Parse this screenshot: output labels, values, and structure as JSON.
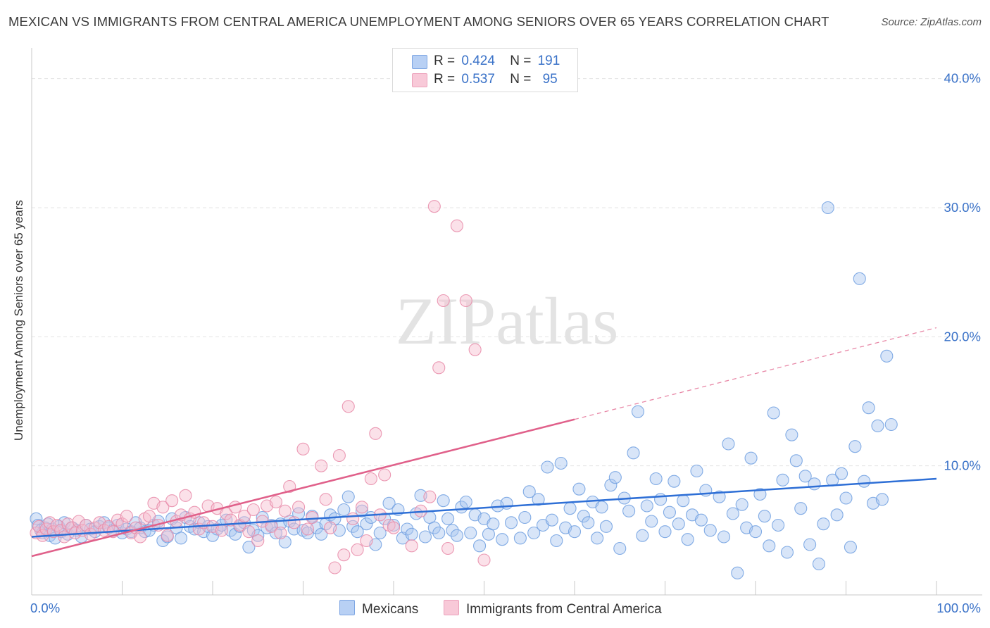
{
  "header": {
    "title": "MEXICAN VS IMMIGRANTS FROM CENTRAL AMERICA UNEMPLOYMENT AMONG SENIORS OVER 65 YEARS CORRELATION CHART",
    "source": "Source: ZipAtlas.com"
  },
  "watermark": "ZIPatlas",
  "stats_legend": {
    "r_label": "R =",
    "n_label": "N =",
    "rows": [
      {
        "r": "0.424",
        "n": "191"
      },
      {
        "r": "0.537",
        "n": "95"
      }
    ]
  },
  "chart_data": {
    "type": "scatter",
    "title": "MEXICAN VS IMMIGRANTS FROM CENTRAL AMERICA UNEMPLOYMENT AMONG SENIORS OVER 65 YEARS CORRELATION CHART",
    "ylabel": "Unemployment Among Seniors over 65 years",
    "xlim": [
      0,
      100
    ],
    "ylim": [
      0,
      42
    ],
    "x_tick_labels": [
      "0.0%",
      "100.0%"
    ],
    "y_ticks": [
      10,
      20,
      30,
      40
    ],
    "y_tick_labels": [
      "10.0%",
      "20.0%",
      "30.0%",
      "40.0%"
    ],
    "grid": true,
    "legend_position": "bottom",
    "series": [
      {
        "name": "Mexicans",
        "color": "#6f9fe0",
        "fill": "#a9c6f0",
        "trend": {
          "x0": 0,
          "y0": 4.5,
          "x1": 100,
          "y1": 9.0,
          "dashed_from": null
        },
        "points": [
          [
            0.5,
            5.9
          ],
          [
            0.7,
            5.4
          ],
          [
            1,
            5.0
          ],
          [
            1.2,
            4.8
          ],
          [
            1.5,
            5.2
          ],
          [
            1.8,
            5.5
          ],
          [
            2,
            4.6
          ],
          [
            2.3,
            5.1
          ],
          [
            2.6,
            4.4
          ],
          [
            3,
            5.3
          ],
          [
            3.3,
            4.9
          ],
          [
            3.6,
            5.6
          ],
          [
            4,
            4.7
          ],
          [
            4.5,
            5.2
          ],
          [
            5,
            5.0
          ],
          [
            5.5,
            4.5
          ],
          [
            6,
            5.4
          ],
          [
            6.5,
            5.1
          ],
          [
            7,
            4.9
          ],
          [
            7.5,
            5.3
          ],
          [
            8,
            5.6
          ],
          [
            8.5,
            5.2
          ],
          [
            9,
            5.0
          ],
          [
            9.5,
            5.4
          ],
          [
            10,
            4.8
          ],
          [
            10.5,
            5.1
          ],
          [
            11,
            4.9
          ],
          [
            11.5,
            5.6
          ],
          [
            12,
            5.2
          ],
          [
            12.5,
            4.9
          ],
          [
            13,
            5.0
          ],
          [
            13.5,
            5.4
          ],
          [
            14,
            5.7
          ],
          [
            14.5,
            4.2
          ],
          [
            15,
            4.5
          ],
          [
            15.5,
            5.9
          ],
          [
            16,
            5.2
          ],
          [
            16.5,
            4.4
          ],
          [
            17,
            6.0
          ],
          [
            17.5,
            5.3
          ],
          [
            18,
            5.1
          ],
          [
            18.5,
            5.6
          ],
          [
            19,
            4.9
          ],
          [
            19.5,
            5.3
          ],
          [
            20,
            4.6
          ],
          [
            20.5,
            5.1
          ],
          [
            21,
            5.4
          ],
          [
            21.5,
            5.8
          ],
          [
            22,
            5.0
          ],
          [
            22.5,
            4.7
          ],
          [
            23,
            5.3
          ],
          [
            23.5,
            5.6
          ],
          [
            24,
            3.7
          ],
          [
            24.5,
            5.0
          ],
          [
            25,
            4.6
          ],
          [
            25.5,
            6.0
          ],
          [
            26,
            5.2
          ],
          [
            26.5,
            5.4
          ],
          [
            27,
            4.8
          ],
          [
            27.5,
            5.5
          ],
          [
            28,
            4.1
          ],
          [
            28.5,
            5.7
          ],
          [
            29,
            5.1
          ],
          [
            29.5,
            6.3
          ],
          [
            30,
            5.0
          ],
          [
            30.5,
            4.8
          ],
          [
            31,
            6.1
          ],
          [
            31.5,
            5.2
          ],
          [
            32,
            4.7
          ],
          [
            32.5,
            5.5
          ],
          [
            33,
            6.2
          ],
          [
            33.5,
            5.9
          ],
          [
            34,
            5.0
          ],
          [
            34.5,
            6.6
          ],
          [
            35,
            7.6
          ],
          [
            35.5,
            5.3
          ],
          [
            36,
            4.9
          ],
          [
            36.5,
            6.5
          ],
          [
            37,
            5.5
          ],
          [
            37.5,
            6.0
          ],
          [
            38,
            3.9
          ],
          [
            38.5,
            4.8
          ],
          [
            39,
            5.9
          ],
          [
            39.5,
            7.1
          ],
          [
            40,
            5.4
          ],
          [
            40.5,
            6.6
          ],
          [
            41,
            4.4
          ],
          [
            41.5,
            5.1
          ],
          [
            42,
            4.7
          ],
          [
            42.5,
            6.3
          ],
          [
            43,
            7.7
          ],
          [
            43.5,
            4.5
          ],
          [
            44,
            6.0
          ],
          [
            44.5,
            5.2
          ],
          [
            45,
            4.8
          ],
          [
            45.5,
            7.3
          ],
          [
            46,
            5.9
          ],
          [
            46.5,
            5.0
          ],
          [
            47,
            4.6
          ],
          [
            47.5,
            6.8
          ],
          [
            48,
            7.2
          ],
          [
            48.5,
            4.8
          ],
          [
            49,
            6.2
          ],
          [
            49.5,
            3.8
          ],
          [
            50,
            5.9
          ],
          [
            50.5,
            4.7
          ],
          [
            51,
            5.5
          ],
          [
            51.5,
            6.9
          ],
          [
            52,
            4.3
          ],
          [
            52.5,
            7.1
          ],
          [
            53,
            5.6
          ],
          [
            54,
            4.4
          ],
          [
            54.5,
            6.0
          ],
          [
            55,
            8.0
          ],
          [
            55.5,
            4.8
          ],
          [
            56,
            7.4
          ],
          [
            56.5,
            5.4
          ],
          [
            57,
            9.9
          ],
          [
            57.5,
            5.8
          ],
          [
            58,
            4.2
          ],
          [
            58.5,
            10.2
          ],
          [
            59,
            5.2
          ],
          [
            59.5,
            6.7
          ],
          [
            60,
            4.9
          ],
          [
            60.5,
            8.2
          ],
          [
            61,
            6.1
          ],
          [
            61.5,
            5.6
          ],
          [
            62,
            7.2
          ],
          [
            62.5,
            4.4
          ],
          [
            63,
            6.8
          ],
          [
            63.5,
            5.3
          ],
          [
            64,
            8.5
          ],
          [
            64.5,
            9.1
          ],
          [
            65,
            3.6
          ],
          [
            65.5,
            7.5
          ],
          [
            66,
            6.5
          ],
          [
            66.5,
            11.0
          ],
          [
            67,
            14.2
          ],
          [
            67.5,
            4.6
          ],
          [
            68,
            6.9
          ],
          [
            68.5,
            5.7
          ],
          [
            69,
            9.0
          ],
          [
            69.5,
            7.4
          ],
          [
            70,
            4.9
          ],
          [
            70.5,
            6.4
          ],
          [
            71,
            8.8
          ],
          [
            71.5,
            5.5
          ],
          [
            72,
            7.3
          ],
          [
            72.5,
            4.3
          ],
          [
            73,
            6.2
          ],
          [
            73.5,
            9.6
          ],
          [
            74,
            5.8
          ],
          [
            74.5,
            8.1
          ],
          [
            75,
            5.0
          ],
          [
            76,
            7.6
          ],
          [
            76.5,
            4.5
          ],
          [
            77,
            11.7
          ],
          [
            77.5,
            6.3
          ],
          [
            78,
            1.7
          ],
          [
            78.5,
            7.0
          ],
          [
            79,
            5.2
          ],
          [
            79.5,
            10.6
          ],
          [
            80,
            4.9
          ],
          [
            80.5,
            7.8
          ],
          [
            81,
            6.1
          ],
          [
            81.5,
            3.8
          ],
          [
            82,
            14.1
          ],
          [
            82.5,
            5.4
          ],
          [
            83,
            8.9
          ],
          [
            83.5,
            3.3
          ],
          [
            84,
            12.4
          ],
          [
            84.5,
            10.4
          ],
          [
            85,
            6.7
          ],
          [
            85.5,
            9.2
          ],
          [
            86,
            3.9
          ],
          [
            86.5,
            8.6
          ],
          [
            87,
            2.4
          ],
          [
            87.5,
            5.5
          ],
          [
            88,
            30.0
          ],
          [
            88.5,
            8.9
          ],
          [
            89,
            6.2
          ],
          [
            89.5,
            9.4
          ],
          [
            90,
            7.5
          ],
          [
            90.5,
            3.7
          ],
          [
            91,
            11.5
          ],
          [
            91.5,
            24.5
          ],
          [
            92,
            8.8
          ],
          [
            92.5,
            14.5
          ],
          [
            93,
            7.1
          ],
          [
            93.5,
            13.1
          ],
          [
            94,
            7.4
          ],
          [
            94.5,
            18.5
          ],
          [
            95,
            13.2
          ]
        ]
      },
      {
        "name": "Immigrants from Central America",
        "color": "#e889a8",
        "fill": "#f6bccf",
        "trend": {
          "x0": 0,
          "y0": 3.0,
          "x1": 60,
          "y1": 13.6,
          "dashed_from": 60,
          "dashed_to_x": 100,
          "dashed_to_y": 20.7
        },
        "points": [
          [
            0.5,
            4.8
          ],
          [
            0.8,
            5.3
          ],
          [
            1.2,
            4.6
          ],
          [
            1.6,
            5.1
          ],
          [
            2,
            5.6
          ],
          [
            2.4,
            4.9
          ],
          [
            2.8,
            5.4
          ],
          [
            3.2,
            5.0
          ],
          [
            3.6,
            4.5
          ],
          [
            4,
            5.5
          ],
          [
            4.4,
            5.2
          ],
          [
            4.8,
            4.8
          ],
          [
            5.2,
            5.7
          ],
          [
            5.6,
            5.0
          ],
          [
            6,
            5.4
          ],
          [
            6.5,
            4.7
          ],
          [
            7,
            5.2
          ],
          [
            7.5,
            5.6
          ],
          [
            8,
            5.0
          ],
          [
            8.5,
            5.3
          ],
          [
            9,
            4.9
          ],
          [
            9.5,
            5.8
          ],
          [
            10,
            5.5
          ],
          [
            10.5,
            6.1
          ],
          [
            11,
            4.8
          ],
          [
            11.5,
            5.2
          ],
          [
            12,
            4.5
          ],
          [
            12.5,
            5.9
          ],
          [
            13,
            6.1
          ],
          [
            13.5,
            7.1
          ],
          [
            14,
            5.4
          ],
          [
            14.5,
            6.8
          ],
          [
            15,
            4.6
          ],
          [
            15.5,
            7.3
          ],
          [
            16,
            5.7
          ],
          [
            16.5,
            6.2
          ],
          [
            17,
            7.7
          ],
          [
            17.5,
            5.9
          ],
          [
            18,
            6.4
          ],
          [
            18.5,
            5.1
          ],
          [
            19,
            5.6
          ],
          [
            19.5,
            6.9
          ],
          [
            20,
            5.3
          ],
          [
            20.5,
            6.7
          ],
          [
            21,
            5.0
          ],
          [
            21.5,
            6.3
          ],
          [
            22,
            5.8
          ],
          [
            22.5,
            6.8
          ],
          [
            23,
            5.4
          ],
          [
            23.5,
            6.1
          ],
          [
            24,
            4.9
          ],
          [
            24.5,
            6.6
          ],
          [
            25,
            4.2
          ],
          [
            25.5,
            5.7
          ],
          [
            26,
            6.9
          ],
          [
            26.5,
            5.3
          ],
          [
            27,
            7.2
          ],
          [
            27.5,
            4.8
          ],
          [
            28,
            6.5
          ],
          [
            28.5,
            8.4
          ],
          [
            29,
            5.6
          ],
          [
            29.5,
            6.8
          ],
          [
            30,
            11.3
          ],
          [
            30.5,
            5.1
          ],
          [
            31,
            6.0
          ],
          [
            32,
            10.0
          ],
          [
            32.5,
            7.4
          ],
          [
            33,
            5.2
          ],
          [
            33.5,
            2.1
          ],
          [
            34,
            10.8
          ],
          [
            34.5,
            3.1
          ],
          [
            35,
            14.6
          ],
          [
            35.5,
            5.9
          ],
          [
            36,
            3.5
          ],
          [
            36.5,
            6.8
          ],
          [
            37,
            4.2
          ],
          [
            37.5,
            9.0
          ],
          [
            38,
            12.5
          ],
          [
            38.5,
            6.2
          ],
          [
            39,
            9.3
          ],
          [
            39.5,
            5.4
          ],
          [
            40,
            5.2
          ],
          [
            42,
            3.8
          ],
          [
            43,
            6.5
          ],
          [
            44,
            7.6
          ],
          [
            44.5,
            30.1
          ],
          [
            45,
            17.6
          ],
          [
            45.5,
            22.8
          ],
          [
            46,
            3.6
          ],
          [
            47,
            28.6
          ],
          [
            48,
            22.8
          ],
          [
            49,
            19.0
          ],
          [
            50,
            2.7
          ]
        ]
      }
    ]
  },
  "bottom_legend": {
    "items": [
      {
        "label": "Mexicans"
      },
      {
        "label": "Immigrants from Central America"
      }
    ]
  },
  "colors": {
    "blue_swatch": "#b8d0f4",
    "blue_border": "#7ea6e3",
    "pink_swatch": "#f8c9d8",
    "pink_border": "#eca2bb",
    "tick_text": "#3a72c8",
    "grid": "#e4e4e4"
  }
}
